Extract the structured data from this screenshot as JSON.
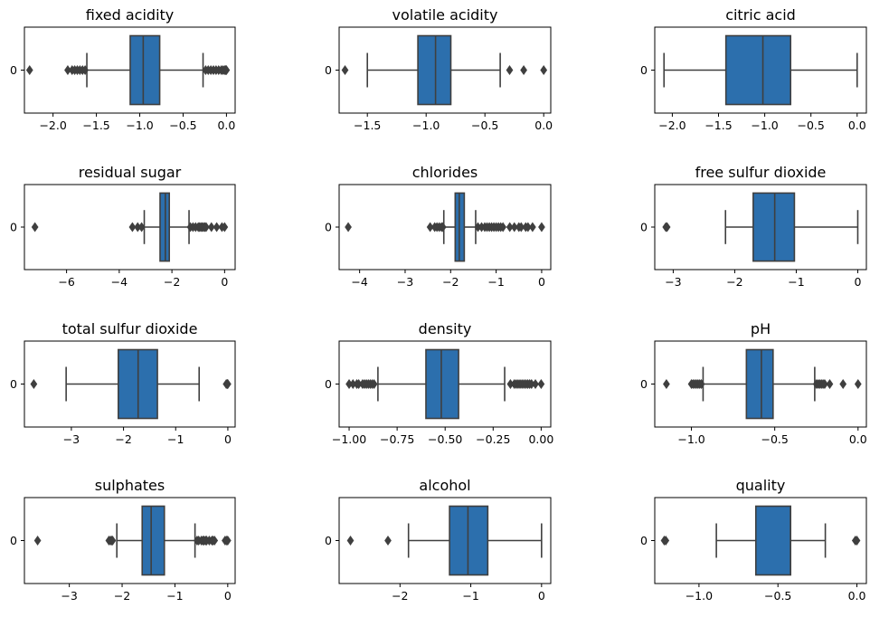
{
  "figure": {
    "ylabel_tick": "0"
  },
  "colors": {
    "box": "#2c6fad",
    "line": "#3f3f3f",
    "axis": "#000000",
    "background": "#ffffff"
  },
  "chart_data": [
    {
      "type": "box",
      "title": "fixed acidity",
      "xlim": [
        -2.33,
        0.1
      ],
      "ticks": [
        -2.0,
        -1.5,
        -1.0,
        -0.5,
        0.0
      ],
      "tick_labels": [
        "−2.0",
        "−1.5",
        "−1.0",
        "−0.5",
        "0.0"
      ],
      "whisker_low": -1.61,
      "q1": -1.11,
      "median": -0.96,
      "q3": -0.77,
      "whisker_high": -0.27,
      "outliers": [
        -2.27,
        -1.83,
        -1.78,
        -1.75,
        -1.72,
        -1.69,
        -1.66,
        -1.63,
        -0.24,
        -0.21,
        -0.18,
        -0.15,
        -0.12,
        -0.09,
        -0.06,
        -0.04,
        -0.02,
        -0.01,
        0.0
      ]
    },
    {
      "type": "box",
      "title": "volatile acidity",
      "xlim": [
        -1.74,
        0.06
      ],
      "ticks": [
        -1.5,
        -1.0,
        -0.5,
        0.0
      ],
      "tick_labels": [
        "−1.5",
        "−1.0",
        "−0.5",
        "0.0"
      ],
      "whisker_low": -1.5,
      "q1": -1.07,
      "median": -0.92,
      "q3": -0.79,
      "whisker_high": -0.37,
      "outliers": [
        -1.69,
        -0.29,
        -0.17,
        0.0
      ]
    },
    {
      "type": "box",
      "title": "citric acid",
      "xlim": [
        -2.19,
        0.1
      ],
      "ticks": [
        -2.0,
        -1.5,
        -1.0,
        -0.5,
        0.0
      ],
      "tick_labels": [
        "−2.0",
        "−1.5",
        "−1.0",
        "−0.5",
        "0.0"
      ],
      "whisker_low": -2.09,
      "q1": -1.42,
      "median": -1.02,
      "q3": -0.72,
      "whisker_high": 0.0,
      "outliers": []
    },
    {
      "type": "box",
      "title": "residual sugar",
      "xlim": [
        -7.6,
        0.4
      ],
      "ticks": [
        -6,
        -4,
        -2,
        0
      ],
      "tick_labels": [
        "−6",
        "−4",
        "−2",
        "0"
      ],
      "whisker_low": -3.05,
      "q1": -2.45,
      "median": -2.25,
      "q3": -2.1,
      "whisker_high": -1.35,
      "outliers": [
        -7.2,
        -3.5,
        -3.3,
        -3.15,
        -1.3,
        -1.2,
        -1.1,
        -1.0,
        -0.95,
        -0.9,
        -0.85,
        -0.8,
        -0.75,
        -0.7,
        -0.5,
        -0.3,
        -0.1,
        0.0
      ]
    },
    {
      "type": "box",
      "title": "chlorides",
      "xlim": [
        -4.45,
        0.2
      ],
      "ticks": [
        -4,
        -3,
        -2,
        -1,
        0
      ],
      "tick_labels": [
        "−4",
        "−3",
        "−2",
        "−1",
        "0"
      ],
      "whisker_low": -2.15,
      "q1": -1.9,
      "median": -1.81,
      "q3": -1.7,
      "whisker_high": -1.45,
      "outliers": [
        -4.25,
        -2.45,
        -2.35,
        -2.3,
        -2.25,
        -2.2,
        -2.17,
        -1.4,
        -1.32,
        -1.25,
        -1.2,
        -1.15,
        -1.1,
        -1.05,
        -1.0,
        -0.95,
        -0.9,
        -0.85,
        -0.7,
        -0.6,
        -0.5,
        -0.45,
        -0.35,
        -0.3,
        -0.2,
        0.0
      ]
    },
    {
      "type": "box",
      "title": "free sulfur dioxide",
      "xlim": [
        -3.3,
        0.14
      ],
      "ticks": [
        -3,
        -2,
        -1,
        0
      ],
      "tick_labels": [
        "−3",
        "−2",
        "−1",
        "0"
      ],
      "whisker_low": -2.15,
      "q1": -1.7,
      "median": -1.35,
      "q3": -1.03,
      "whisker_high": 0.0,
      "outliers": [
        -3.12,
        -3.1
      ]
    },
    {
      "type": "box",
      "title": "total sulfur dioxide",
      "xlim": [
        -3.9,
        0.14
      ],
      "ticks": [
        -3,
        -2,
        -1,
        0
      ],
      "tick_labels": [
        "−3",
        "−2",
        "−1",
        "0"
      ],
      "whisker_low": -3.1,
      "q1": -2.1,
      "median": -1.72,
      "q3": -1.35,
      "whisker_high": -0.55,
      "outliers": [
        -3.72,
        -0.03,
        -0.01,
        0.0
      ]
    },
    {
      "type": "box",
      "title": "density",
      "xlim": [
        -1.052,
        0.05
      ],
      "ticks": [
        -1.0,
        -0.75,
        -0.5,
        -0.25,
        0.0
      ],
      "tick_labels": [
        "−1.00",
        "−0.75",
        "−0.50",
        "−0.25",
        "0.00"
      ],
      "whisker_low": -0.85,
      "q1": -0.6,
      "median": -0.52,
      "q3": -0.43,
      "whisker_high": -0.19,
      "outliers": [
        -1.0,
        -0.98,
        -0.96,
        -0.95,
        -0.93,
        -0.92,
        -0.91,
        -0.9,
        -0.89,
        -0.88,
        -0.87,
        -0.16,
        -0.14,
        -0.13,
        -0.12,
        -0.11,
        -0.1,
        -0.09,
        -0.08,
        -0.07,
        -0.06,
        -0.05,
        -0.03,
        0.0
      ]
    },
    {
      "type": "box",
      "title": "pH",
      "xlim": [
        -1.22,
        0.05
      ],
      "ticks": [
        -1.0,
        -0.5,
        0.0
      ],
      "tick_labels": [
        "−1.0",
        "−0.5",
        "0.0"
      ],
      "whisker_low": -0.93,
      "q1": -0.67,
      "median": -0.58,
      "q3": -0.51,
      "whisker_high": -0.26,
      "outliers": [
        -1.15,
        -1.0,
        -0.99,
        -0.98,
        -0.97,
        -0.96,
        -0.95,
        -0.94,
        -0.25,
        -0.24,
        -0.23,
        -0.22,
        -0.21,
        -0.2,
        -0.17,
        -0.09,
        0.0
      ]
    },
    {
      "type": "box",
      "title": "sulphates",
      "xlim": [
        -3.85,
        0.14
      ],
      "ticks": [
        -3,
        -2,
        -1,
        0
      ],
      "tick_labels": [
        "−3",
        "−2",
        "−1",
        "0"
      ],
      "whisker_low": -2.1,
      "q1": -1.62,
      "median": -1.45,
      "q3": -1.2,
      "whisker_high": -0.62,
      "outliers": [
        -3.6,
        -2.25,
        -2.22,
        -2.2,
        -2.18,
        -0.58,
        -0.55,
        -0.5,
        -0.47,
        -0.45,
        -0.42,
        -0.4,
        -0.35,
        -0.3,
        -0.28,
        -0.25,
        -0.05,
        -0.02,
        0.0
      ]
    },
    {
      "type": "box",
      "title": "alcohol",
      "xlim": [
        -2.86,
        0.13
      ],
      "ticks": [
        -2,
        -1,
        0
      ],
      "tick_labels": [
        "−2",
        "−1",
        "0"
      ],
      "whisker_low": -1.88,
      "q1": -1.3,
      "median": -1.04,
      "q3": -0.76,
      "whisker_high": 0.0,
      "outliers": [
        -2.7,
        -2.17
      ]
    },
    {
      "type": "box",
      "title": "quality",
      "xlim": [
        -1.28,
        0.06
      ],
      "ticks": [
        -1.0,
        -0.5,
        0.0
      ],
      "tick_labels": [
        "−1.0",
        "−0.5",
        "0.0"
      ],
      "whisker_low": -0.89,
      "q1": -0.64,
      "median": -0.42,
      "q3": -0.42,
      "whisker_high": -0.2,
      "outliers": [
        -1.22,
        -1.21,
        -0.01,
        0.0
      ]
    }
  ]
}
